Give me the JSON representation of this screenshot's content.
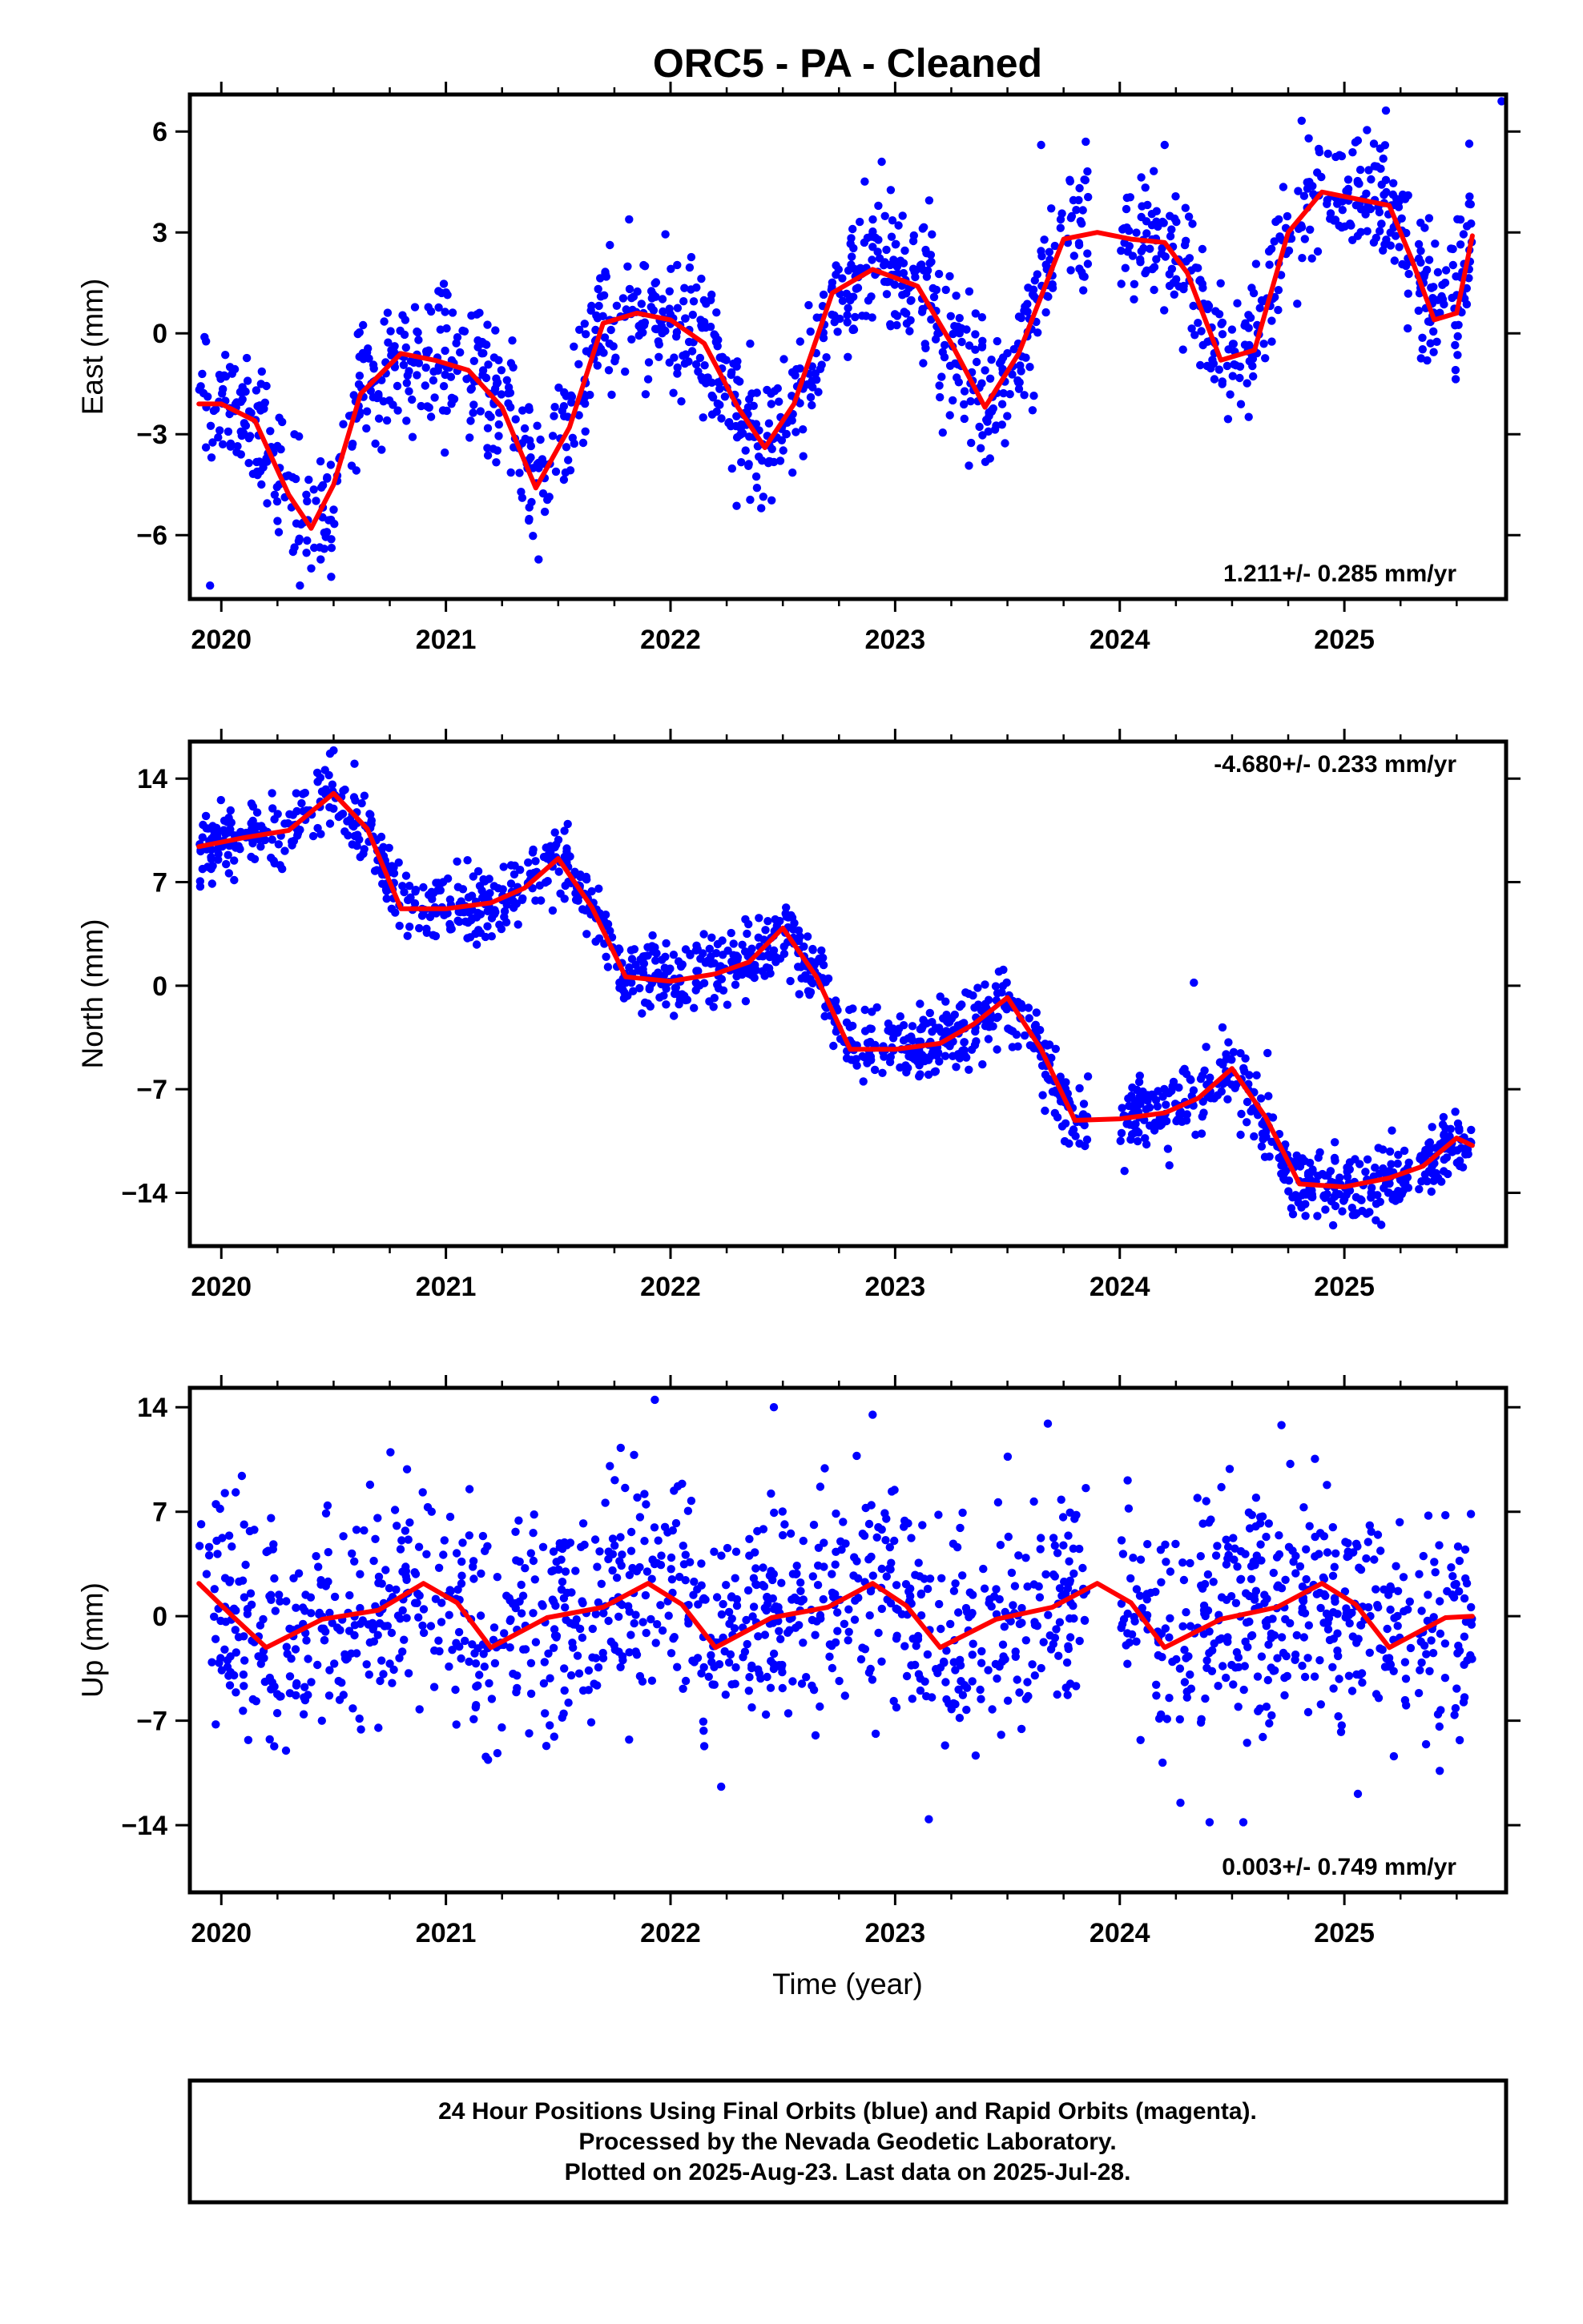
{
  "title": "ORC5  - PA - Cleaned",
  "footer": {
    "lines": [
      "24 Hour Positions Using Final Orbits (blue) and Rapid Orbits (magenta).",
      "Processed by the Nevada Geodetic Laboratory.",
      "Plotted on 2025-Aug-23. Last data on 2025-Jul-28."
    ]
  },
  "colors": {
    "points": "#0000ff",
    "fit": "#ff0000",
    "frame": "#000000"
  },
  "chart_data": [
    {
      "type": "scatter",
      "ylabel": "East (mm)",
      "xlabel": "",
      "xlim": [
        2019.86,
        2025.72
      ],
      "ylim": [
        -7.9,
        7.1
      ],
      "x_ticks": [
        2020,
        2021,
        2022,
        2023,
        2024,
        2025
      ],
      "y_ticks": [
        -6,
        -3,
        0,
        3,
        6
      ],
      "y_tick_labels": [
        "−6",
        "−3",
        "0",
        "3",
        "6"
      ],
      "rate_label": "1.211+/- 0.285 mm/yr",
      "rate_position": "bottom-right",
      "series": [
        {
          "kind": "points",
          "x_range": [
            2019.9,
            2025.57
          ],
          "scatter_sd": 1.0,
          "outliers": [
            [
              2025.82,
              6.9
            ],
            [
              2023.65,
              5.6
            ],
            [
              2024.2,
              5.6
            ],
            [
              2022.94,
              5.1
            ],
            [
              2019.95,
              -7.5
            ],
            [
              2020.35,
              -7.5
            ]
          ]
        },
        {
          "kind": "fit_line",
          "x": [
            2019.9,
            2020.0,
            2020.15,
            2020.3,
            2020.4,
            2020.5,
            2020.62,
            2020.8,
            2020.95,
            2021.1,
            2021.25,
            2021.4,
            2021.55,
            2021.7,
            2021.85,
            2022.0,
            2022.15,
            2022.3,
            2022.42,
            2022.55,
            2022.72,
            2022.9,
            2023.1,
            2023.25,
            2023.4,
            2023.55,
            2023.75,
            2023.9,
            2024.05,
            2024.2,
            2024.3,
            2024.45,
            2024.6,
            2024.75,
            2024.9,
            2025.05,
            2025.2,
            2025.3,
            2025.4,
            2025.5,
            2025.57
          ],
          "y": [
            -2.1,
            -2.1,
            -2.6,
            -4.8,
            -5.8,
            -4.5,
            -1.8,
            -0.6,
            -0.8,
            -1.1,
            -2.2,
            -4.6,
            -2.8,
            0.3,
            0.6,
            0.4,
            -0.3,
            -2.2,
            -3.4,
            -2.1,
            1.2,
            1.9,
            1.4,
            -0.3,
            -2.2,
            -0.6,
            2.8,
            3.0,
            2.8,
            2.7,
            1.8,
            -0.8,
            -0.5,
            3.0,
            4.2,
            4.0,
            3.8,
            2.2,
            0.4,
            0.6,
            2.9
          ]
        }
      ]
    },
    {
      "type": "scatter",
      "ylabel": "North (mm)",
      "xlabel": "",
      "xlim": [
        2019.86,
        2025.72
      ],
      "ylim": [
        -17.6,
        16.5
      ],
      "x_ticks": [
        2020,
        2021,
        2022,
        2023,
        2024,
        2025
      ],
      "y_ticks": [
        -14,
        -7,
        0,
        7,
        14
      ],
      "y_tick_labels": [
        "−14",
        "−7",
        "0",
        "7",
        "14"
      ],
      "rate_label": "-4.680+/- 0.233 mm/yr",
      "rate_position": "top-right",
      "series": [
        {
          "kind": "points",
          "x_range": [
            2019.9,
            2025.57
          ],
          "scatter_sd": 1.2,
          "outliers": [
            [
              2024.33,
              0.2
            ],
            [
              2020.5,
              15.9
            ],
            [
              2024.95,
              -16.2
            ]
          ]
        },
        {
          "kind": "fit_line",
          "x": [
            2019.9,
            2020.1,
            2020.3,
            2020.5,
            2020.65,
            2020.8,
            2021.0,
            2021.2,
            2021.35,
            2021.5,
            2021.65,
            2021.8,
            2022.0,
            2022.2,
            2022.35,
            2022.5,
            2022.65,
            2022.8,
            2023.0,
            2023.2,
            2023.35,
            2023.5,
            2023.65,
            2023.8,
            2024.0,
            2024.2,
            2024.35,
            2024.5,
            2024.65,
            2024.8,
            2025.0,
            2025.2,
            2025.35,
            2025.5,
            2025.57
          ],
          "y": [
            9.4,
            10.0,
            10.5,
            13.0,
            10.6,
            5.2,
            5.2,
            5.6,
            6.6,
            8.6,
            5.3,
            0.6,
            0.3,
            0.8,
            1.6,
            3.9,
            0.6,
            -4.3,
            -4.3,
            -3.9,
            -2.6,
            -0.8,
            -4.3,
            -9.1,
            -9.0,
            -8.6,
            -7.6,
            -5.6,
            -8.9,
            -13.4,
            -13.6,
            -13.0,
            -12.2,
            -10.3,
            -10.8
          ]
        }
      ]
    },
    {
      "type": "scatter",
      "ylabel": "Up (mm)",
      "xlabel": "Time (year)",
      "xlim": [
        2019.86,
        2025.72
      ],
      "ylim": [
        -18.5,
        15.3
      ],
      "x_ticks": [
        2020,
        2021,
        2022,
        2023,
        2024,
        2025
      ],
      "y_ticks": [
        -14,
        -7,
        0,
        7,
        14
      ],
      "y_tick_labels": [
        "−14",
        "−7",
        "0",
        "7",
        "14"
      ],
      "rate_label": "0.003+/- 0.749 mm/yr",
      "rate_position": "bottom-right",
      "series": [
        {
          "kind": "points",
          "x_range": [
            2019.9,
            2025.57
          ],
          "scatter_sd": 3.6,
          "outliers": [
            [
              2021.93,
              14.5
            ],
            [
              2022.46,
              14.0
            ],
            [
              2022.9,
              13.5
            ],
            [
              2023.68,
              12.9
            ],
            [
              2024.72,
              12.8
            ],
            [
              2023.15,
              -13.6
            ],
            [
              2024.27,
              -12.5
            ],
            [
              2024.4,
              -13.8
            ],
            [
              2024.55,
              -13.8
            ],
            [
              2025.06,
              -11.9
            ]
          ]
        },
        {
          "kind": "fit_line",
          "x": [
            2019.9,
            2020.05,
            2020.2,
            2020.45,
            2020.7,
            2020.9,
            2021.05,
            2021.2,
            2021.45,
            2021.7,
            2021.9,
            2022.05,
            2022.2,
            2022.45,
            2022.7,
            2022.9,
            2023.05,
            2023.2,
            2023.45,
            2023.7,
            2023.9,
            2024.05,
            2024.2,
            2024.45,
            2024.7,
            2024.9,
            2025.05,
            2025.2,
            2025.45,
            2025.57
          ],
          "y": [
            2.2,
            0.0,
            -2.1,
            -0.2,
            0.4,
            2.2,
            0.9,
            -2.1,
            -0.1,
            0.6,
            2.2,
            0.8,
            -2.1,
            -0.1,
            0.6,
            2.2,
            0.7,
            -2.1,
            -0.2,
            0.6,
            2.2,
            0.9,
            -2.1,
            -0.2,
            0.6,
            2.2,
            0.8,
            -2.1,
            -0.1,
            0.0
          ]
        }
      ]
    }
  ]
}
